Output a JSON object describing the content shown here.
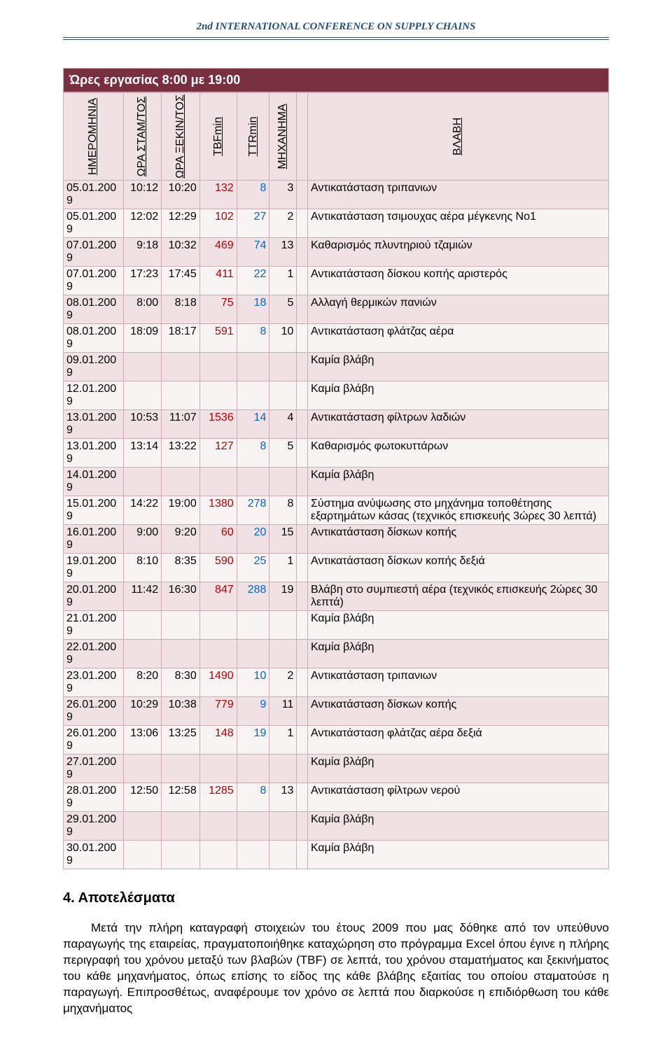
{
  "header": {
    "title": "2nd INTERNATIONAL CONFERENCE ON SUPPLY CHAINS",
    "title_color": "#1f4e79"
  },
  "table": {
    "title": "Ώρες εργασίας 8:00 με 19:00",
    "title_bg": "#782f40",
    "title_color": "#ffffff",
    "row_odd_bg": "#f0e2e4",
    "row_even_bg": "#f8f4f4",
    "border_color": "#ccaeb2",
    "tbf_color": "#b30000",
    "ttr_color": "#0066cc",
    "columns": [
      {
        "key": "date",
        "label": "ΗΜΕΡΟΜΗΝΙΑ"
      },
      {
        "key": "t1",
        "label": "ΩΡΑ ΣΤΑΜ/ΤΟΣ"
      },
      {
        "key": "t2",
        "label": "ΩΡΑ ΞΕΚΙΝ/ΤΟΣ"
      },
      {
        "key": "tbf",
        "label": "TBFmin"
      },
      {
        "key": "ttr",
        "label": "TTRmin"
      },
      {
        "key": "mach",
        "label": "ΜΗΧΑΝΗΜΑ"
      },
      {
        "key": "blank",
        "label": ""
      },
      {
        "key": "fault",
        "label": "ΒΛΑΒΗ"
      }
    ],
    "rows": [
      {
        "date": "05.01.2009",
        "t1": "10:12",
        "t2": "10:20",
        "tbf": "132",
        "ttr": "8",
        "mach": "3",
        "fault": "Αντικατάσταση τριπανιων"
      },
      {
        "date": "05.01.2009",
        "t1": "12:02",
        "t2": "12:29",
        "tbf": "102",
        "ttr": "27",
        "mach": "2",
        "fault": "Αντικατάσταση τσιμουχας αέρα μέγκενης Νο1"
      },
      {
        "date": "07.01.2009",
        "t1": "9:18",
        "t2": "10:32",
        "tbf": "469",
        "ttr": "74",
        "mach": "13",
        "fault": "Καθαρισμός πλυντηριού τζαμιών"
      },
      {
        "date": "07.01.2009",
        "t1": "17:23",
        "t2": "17:45",
        "tbf": "411",
        "ttr": "22",
        "mach": "1",
        "fault": "Αντικατάσταση δίσκου κοπής αριστερός"
      },
      {
        "date": "08.01.2009",
        "t1": "8:00",
        "t2": "8:18",
        "tbf": "75",
        "ttr": "18",
        "mach": "5",
        "fault": "Αλλαγή θερμικών πανιών"
      },
      {
        "date": "08.01.2009",
        "t1": "18:09",
        "t2": "18:17",
        "tbf": "591",
        "ttr": "8",
        "mach": "10",
        "fault": "Αντικατάσταση φλάτζας αέρα"
      },
      {
        "date": "09.01.2009",
        "t1": "",
        "t2": "",
        "tbf": "",
        "ttr": "",
        "mach": "",
        "fault": "Καμία βλάβη"
      },
      {
        "date": "12.01.2009",
        "t1": "",
        "t2": "",
        "tbf": "",
        "ttr": "",
        "mach": "",
        "fault": "Καμία βλάβη"
      },
      {
        "date": "13.01.2009",
        "t1": "10:53",
        "t2": "11:07",
        "tbf": "1536",
        "ttr": "14",
        "mach": "4",
        "fault": "Αντικατάσταση φίλτρων λαδιών"
      },
      {
        "date": "13.01.2009",
        "t1": "13:14",
        "t2": "13:22",
        "tbf": "127",
        "ttr": "8",
        "mach": "5",
        "fault": "Καθαρισμός φωτοκυττάρων"
      },
      {
        "date": "14.01.2009",
        "t1": "",
        "t2": "",
        "tbf": "",
        "ttr": "",
        "mach": "",
        "fault": "Καμία βλάβη"
      },
      {
        "date": "15.01.2009",
        "t1": "14:22",
        "t2": "19:00",
        "tbf": "1380",
        "ttr": "278",
        "mach": "8",
        "fault": "Σύστημα ανύψωσης στο μηχάνημα τοποθέτησης εξαρτημάτων κάσας (τεχνικός επισκευής 3ώρες 30 λεπτά)"
      },
      {
        "date": "16.01.2009",
        "t1": "9:00",
        "t2": "9:20",
        "tbf": "60",
        "ttr": "20",
        "mach": "15",
        "fault": "Αντικατάσταση δίσκων κοπής"
      },
      {
        "date": "19.01.2009",
        "t1": "8:10",
        "t2": "8:35",
        "tbf": "590",
        "ttr": "25",
        "mach": "1",
        "fault": "Αντικατάσταση δίσκων κοπής δεξιά"
      },
      {
        "date": "20.01.2009",
        "t1": "11:42",
        "t2": "16:30",
        "tbf": "847",
        "ttr": "288",
        "mach": "19",
        "fault": "Βλάβη στο συμπιεστή αέρα (τεχνικός επισκευής 2ώρες 30 λεπτά)"
      },
      {
        "date": "21.01.2009",
        "t1": "",
        "t2": "",
        "tbf": "",
        "ttr": "",
        "mach": "",
        "fault": "Καμία βλάβη"
      },
      {
        "date": "22.01.2009",
        "t1": "",
        "t2": "",
        "tbf": "",
        "ttr": "",
        "mach": "",
        "fault": "Καμία βλάβη"
      },
      {
        "date": "23.01.2009",
        "t1": "8:20",
        "t2": "8:30",
        "tbf": "1490",
        "ttr": "10",
        "mach": "2",
        "fault": "Αντικατάσταση τριπανιων"
      },
      {
        "date": "26.01.2009",
        "t1": "10:29",
        "t2": "10:38",
        "tbf": "779",
        "ttr": "9",
        "mach": "11",
        "fault": "Αντικατάσταση δίσκων κοπής"
      },
      {
        "date": "26.01.2009",
        "t1": "13:06",
        "t2": "13:25",
        "tbf": "148",
        "ttr": "19",
        "mach": "1",
        "fault": "Αντικατάσταση φλάτζας αέρα δεξιά"
      },
      {
        "date": "27.01.2009",
        "t1": "",
        "t2": "",
        "tbf": "",
        "ttr": "",
        "mach": "",
        "fault": "Καμία βλάβη"
      },
      {
        "date": "28.01.2009",
        "t1": "12:50",
        "t2": "12:58",
        "tbf": "1285",
        "ttr": "8",
        "mach": "13",
        "fault": "Αντικατάσταση φίλτρων νερού"
      },
      {
        "date": "29.01.2009",
        "t1": "",
        "t2": "",
        "tbf": "",
        "ttr": "",
        "mach": "",
        "fault": "Καμία βλάβη"
      },
      {
        "date": "30.01.2009",
        "t1": "",
        "t2": "",
        "tbf": "",
        "ttr": "",
        "mach": "",
        "fault": "Καμία βλάβη"
      }
    ]
  },
  "section": {
    "heading": "4. Αποτελέσματα",
    "paragraph": "Μετά την πλήρη καταγραφή στοιχειών του έτους 2009 που μας δόθηκε από τον υπεύθυνο παραγωγής της εταιρείας, πραγματοποιήθηκε καταχώρηση στο πρόγραμμα Excel όπου έγινε η πλήρης περιγραφή του χρόνου μεταξύ των βλαβών (TBF) σε λεπτά, του χρόνου σταματήματος και ξεκινήματος του κάθε μηχανήματος, όπως επίσης το είδος της κάθε βλάβης εξαιτίας του οποίου σταματούσε η παραγωγή. Επιπροσθέτως, αναφέρουμε τον χρόνο σε λεπτά που διαρκούσε η επιδιόρθωση του κάθε μηχανήματος"
  }
}
